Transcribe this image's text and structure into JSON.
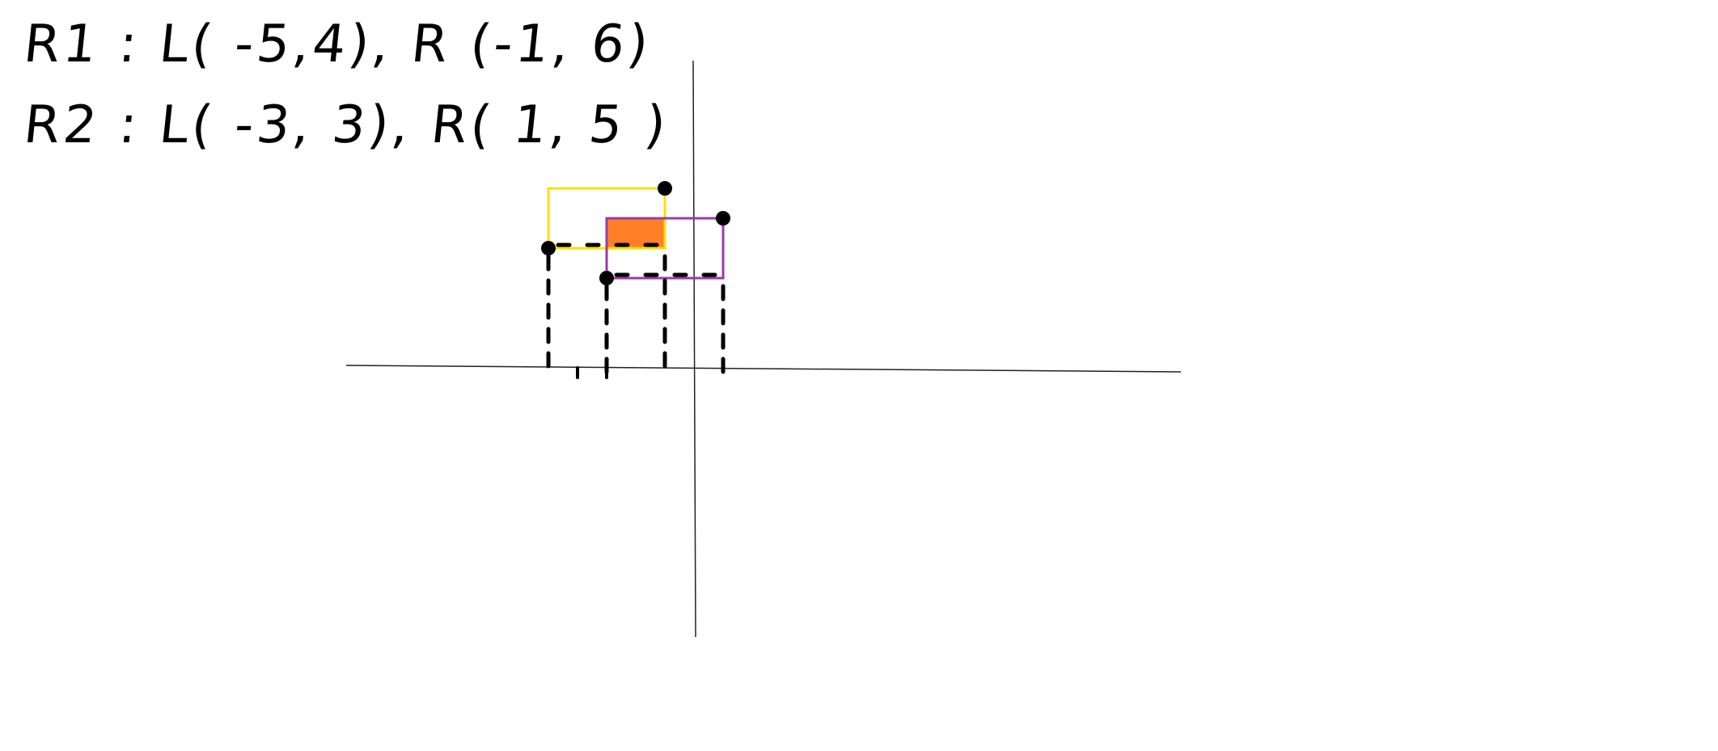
{
  "notes": {
    "rect1": "R1 : L( -5,4), R (-1, 6)",
    "rect2": "R2 : L( -3, 3), R( 1, 5 )"
  },
  "rectangles": [
    {
      "name": "R1",
      "lower_left": [
        -5,
        4
      ],
      "upper_right": [
        -1,
        6
      ],
      "stroke": "#ffe000"
    },
    {
      "name": "R2",
      "lower_left": [
        -3,
        3
      ],
      "upper_right": [
        1,
        5
      ],
      "stroke": "#9b3aa6"
    }
  ],
  "overlap": {
    "lower_left": [
      -3,
      4
    ],
    "upper_right": [
      -1,
      5
    ],
    "fill": "#ff7f27"
  }
}
